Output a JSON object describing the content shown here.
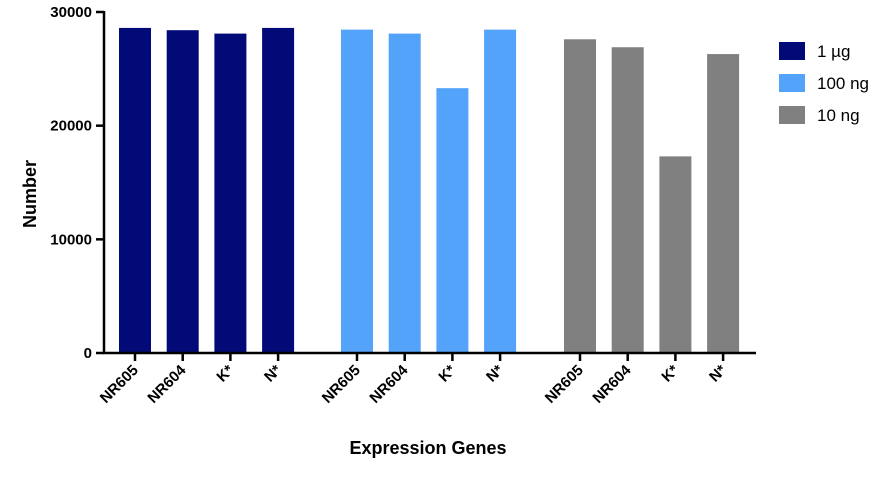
{
  "chart_data": {
    "type": "bar",
    "xlabel": "Expression Genes",
    "ylabel": "Number",
    "ylim": [
      0,
      30000
    ],
    "yticks": [
      0,
      10000,
      20000,
      30000
    ],
    "grid": false,
    "legend_position": "top-right",
    "groups": [
      {
        "name": "1 µg",
        "color": "#020a78",
        "categories": [
          "NR605",
          "NR604",
          "K*",
          "N*"
        ],
        "values": [
          28600,
          28400,
          28100,
          28600
        ]
      },
      {
        "name": "100 ng",
        "color": "#53a3fb",
        "categories": [
          "NR605",
          "NR604",
          "K*",
          "N*"
        ],
        "values": [
          28450,
          28100,
          23300,
          28450
        ]
      },
      {
        "name": "10 ng",
        "color": "#808080",
        "categories": [
          "NR605",
          "NR604",
          "K*",
          "N*"
        ],
        "values": [
          27600,
          26900,
          17300,
          26300
        ]
      }
    ]
  }
}
